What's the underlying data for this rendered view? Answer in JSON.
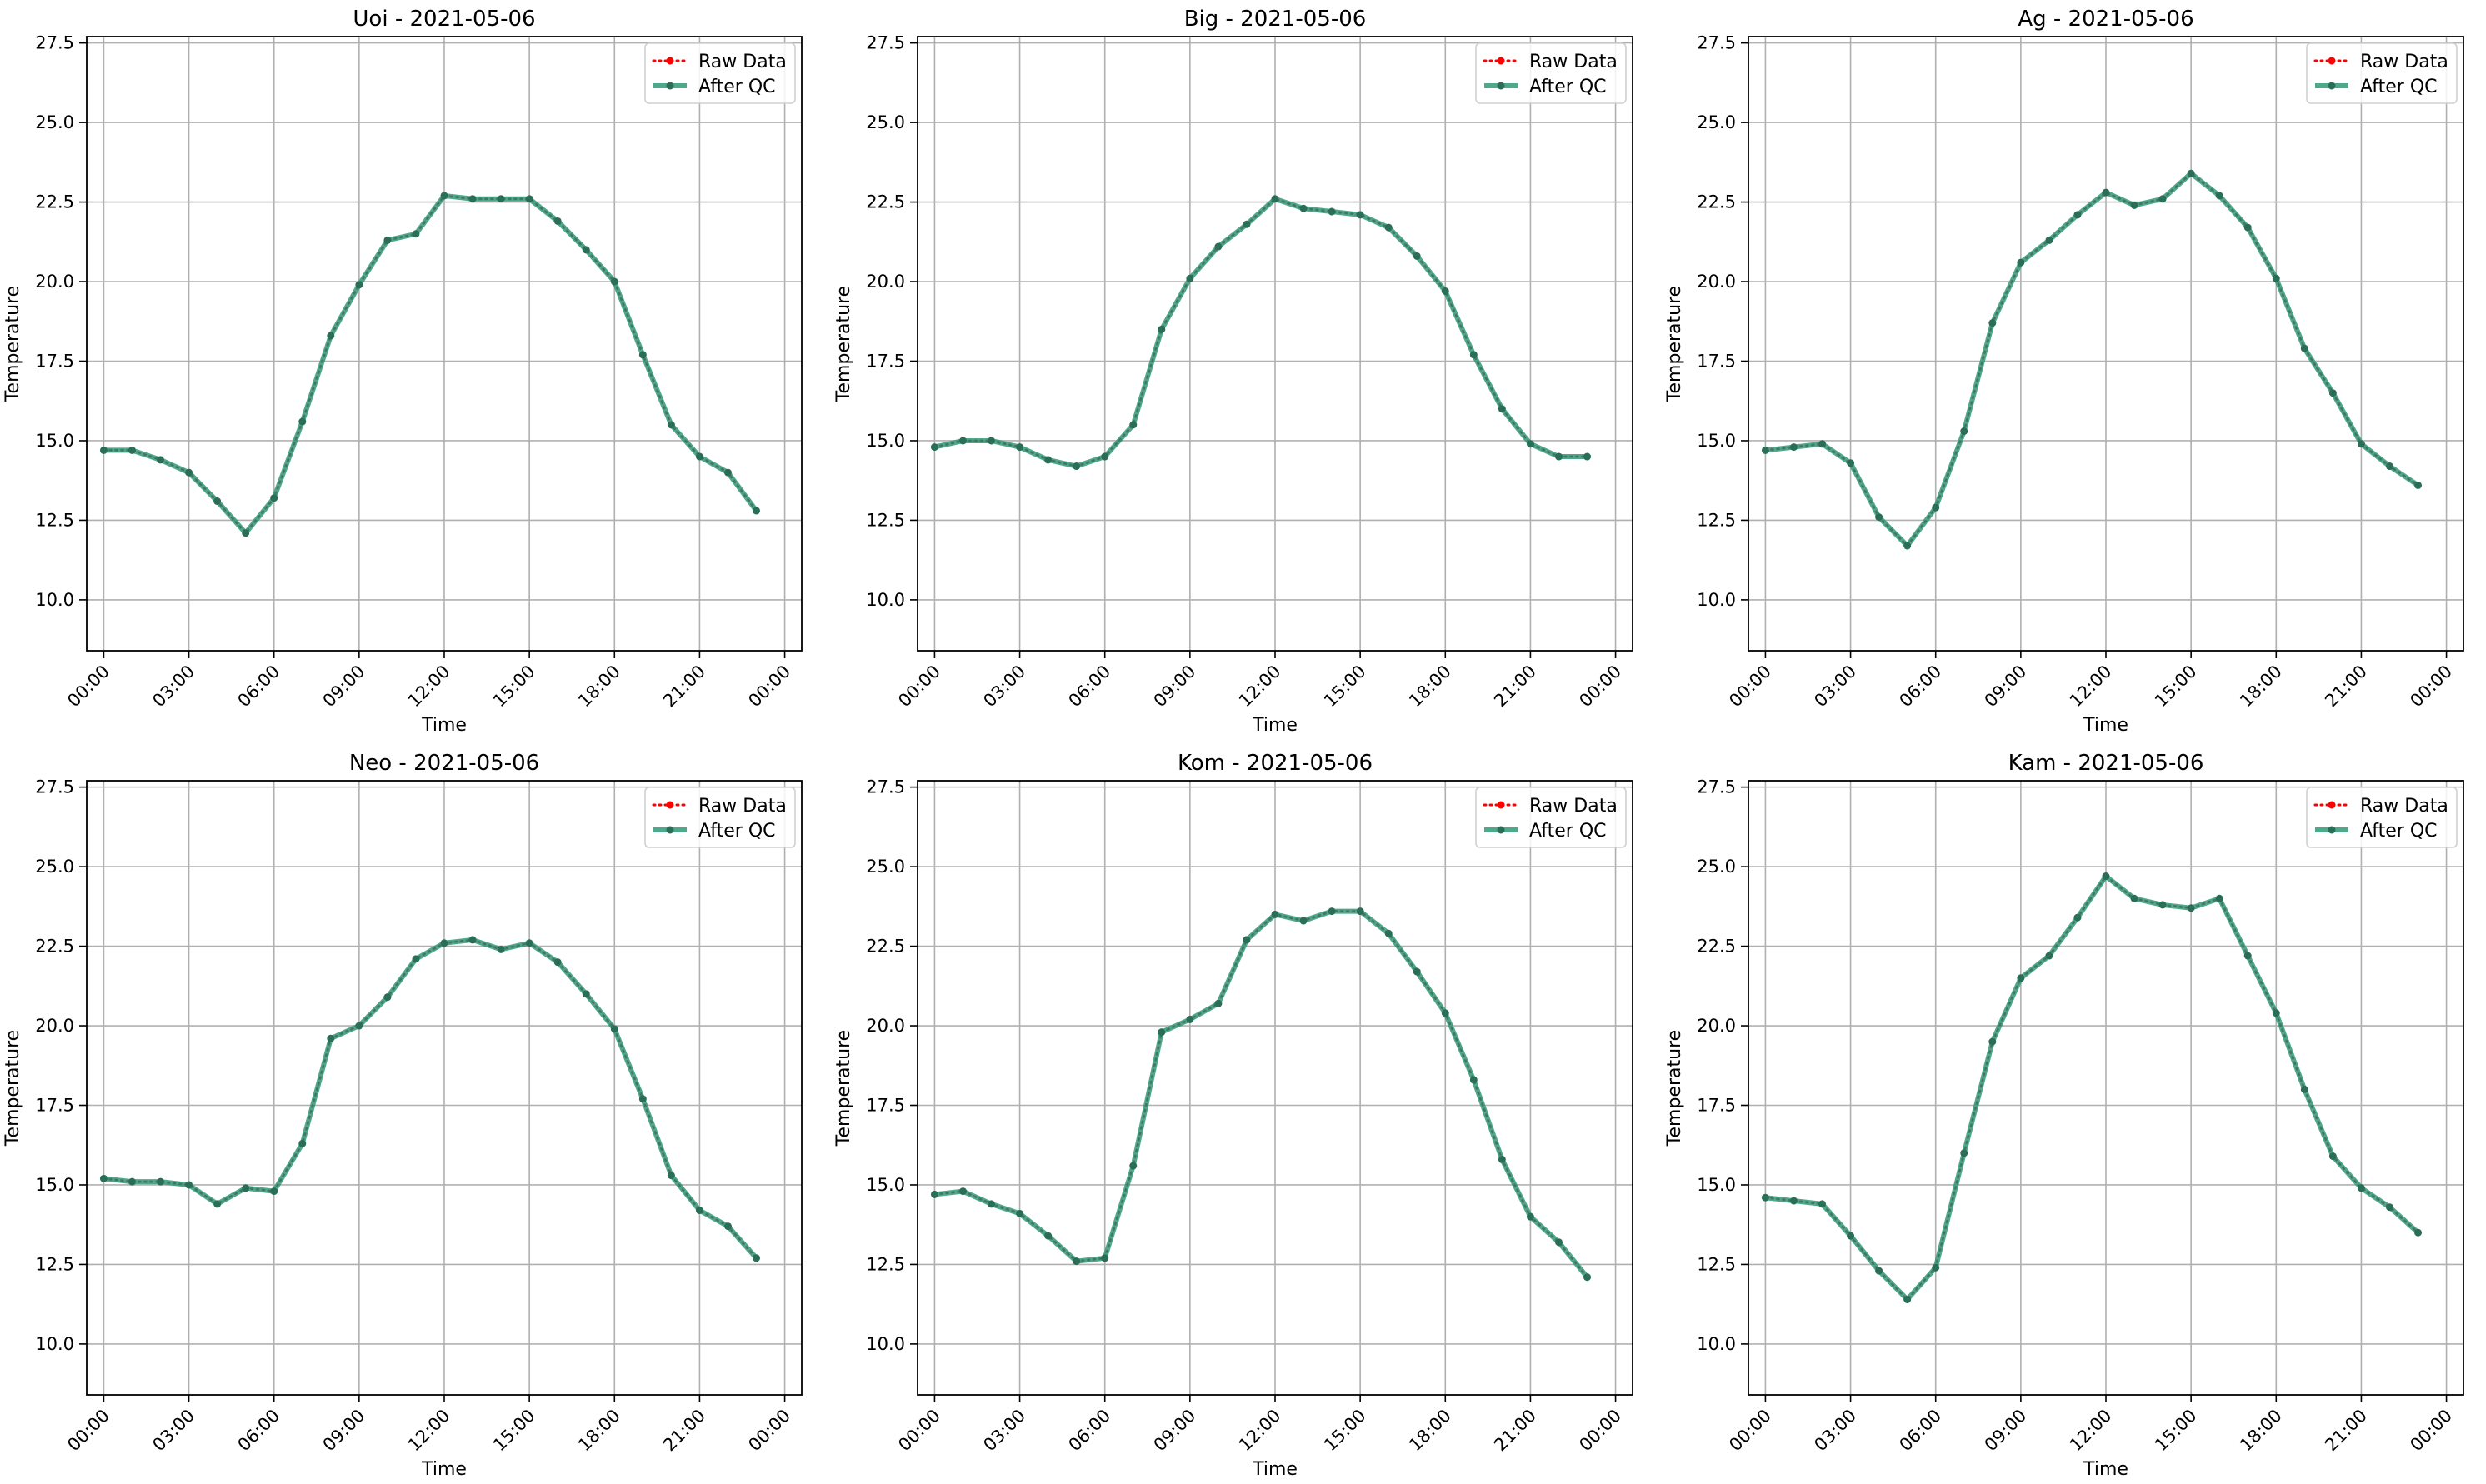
{
  "chart_data": [
    {
      "type": "line",
      "title": "Uoi - 2021-05-06",
      "xlabel": "Time",
      "ylabel": "Temperature",
      "xticks": [
        "00:00",
        "03:00",
        "06:00",
        "09:00",
        "12:00",
        "15:00",
        "18:00",
        "21:00",
        "00:00"
      ],
      "yticks": [
        "10.0",
        "12.5",
        "15.0",
        "17.5",
        "20.0",
        "22.5",
        "25.0",
        "27.5"
      ],
      "xlim_hours": [
        -0.6,
        24.6
      ],
      "ylim": [
        8.4,
        27.7
      ],
      "grid": true,
      "legend": "top-right",
      "x_hours": [
        0,
        1,
        2,
        3,
        4,
        5,
        6,
        7,
        8,
        9,
        10,
        11,
        12,
        13,
        14,
        15,
        16,
        17,
        18,
        19,
        20,
        21,
        22,
        23
      ],
      "series": [
        {
          "name": "Raw Data",
          "color": "#ff0000",
          "style": "dotted",
          "values": [
            14.7,
            14.7,
            14.4,
            14.0,
            13.1,
            12.1,
            13.2,
            15.6,
            18.3,
            19.9,
            21.3,
            21.5,
            22.7,
            22.6,
            22.6,
            22.6,
            21.9,
            21.0,
            20.0,
            17.7,
            15.5,
            14.5,
            14.0,
            12.8
          ]
        },
        {
          "name": "After QC",
          "color": "#2e9a78",
          "style": "solid",
          "values": [
            14.7,
            14.7,
            14.4,
            14.0,
            13.1,
            12.1,
            13.2,
            15.6,
            18.3,
            19.9,
            21.3,
            21.5,
            22.7,
            22.6,
            22.6,
            22.6,
            21.9,
            21.0,
            20.0,
            17.7,
            15.5,
            14.5,
            14.0,
            12.8
          ]
        }
      ]
    },
    {
      "type": "line",
      "title": "Big - 2021-05-06",
      "xlabel": "Time",
      "ylabel": "Temperature",
      "xticks": [
        "00:00",
        "03:00",
        "06:00",
        "09:00",
        "12:00",
        "15:00",
        "18:00",
        "21:00",
        "00:00"
      ],
      "yticks": [
        "10.0",
        "12.5",
        "15.0",
        "17.5",
        "20.0",
        "22.5",
        "25.0",
        "27.5"
      ],
      "xlim_hours": [
        -0.6,
        24.6
      ],
      "ylim": [
        8.4,
        27.7
      ],
      "grid": true,
      "legend": "top-right",
      "x_hours": [
        0,
        1,
        2,
        3,
        4,
        5,
        6,
        7,
        8,
        9,
        10,
        11,
        12,
        13,
        14,
        15,
        16,
        17,
        18,
        19,
        20,
        21,
        22,
        23
      ],
      "series": [
        {
          "name": "Raw Data",
          "color": "#ff0000",
          "style": "dotted",
          "values": [
            14.8,
            15.0,
            15.0,
            14.8,
            14.4,
            14.2,
            14.5,
            15.5,
            18.5,
            20.1,
            21.1,
            21.8,
            22.6,
            22.3,
            22.2,
            22.1,
            21.7,
            20.8,
            19.7,
            17.7,
            16.0,
            14.9,
            14.5,
            14.5
          ]
        },
        {
          "name": "After QC",
          "color": "#2e9a78",
          "style": "solid",
          "values": [
            14.8,
            15.0,
            15.0,
            14.8,
            14.4,
            14.2,
            14.5,
            15.5,
            18.5,
            20.1,
            21.1,
            21.8,
            22.6,
            22.3,
            22.2,
            22.1,
            21.7,
            20.8,
            19.7,
            17.7,
            16.0,
            14.9,
            14.5,
            14.5
          ]
        }
      ]
    },
    {
      "type": "line",
      "title": "Ag - 2021-05-06",
      "xlabel": "Time",
      "ylabel": "Temperature",
      "xticks": [
        "00:00",
        "03:00",
        "06:00",
        "09:00",
        "12:00",
        "15:00",
        "18:00",
        "21:00",
        "00:00"
      ],
      "yticks": [
        "10.0",
        "12.5",
        "15.0",
        "17.5",
        "20.0",
        "22.5",
        "25.0",
        "27.5"
      ],
      "xlim_hours": [
        -0.6,
        24.6
      ],
      "ylim": [
        8.4,
        27.7
      ],
      "grid": true,
      "legend": "top-right",
      "x_hours": [
        0,
        1,
        2,
        3,
        4,
        5,
        6,
        7,
        8,
        9,
        10,
        11,
        12,
        13,
        14,
        15,
        16,
        17,
        18,
        19,
        20,
        21,
        22,
        23
      ],
      "series": [
        {
          "name": "Raw Data",
          "color": "#ff0000",
          "style": "dotted",
          "values": [
            14.7,
            14.8,
            14.9,
            14.3,
            12.6,
            11.7,
            12.9,
            15.3,
            18.7,
            20.6,
            21.3,
            22.1,
            22.8,
            22.4,
            22.6,
            23.4,
            22.7,
            21.7,
            20.1,
            17.9,
            16.5,
            14.9,
            14.2,
            13.6
          ]
        },
        {
          "name": "After QC",
          "color": "#2e9a78",
          "style": "solid",
          "values": [
            14.7,
            14.8,
            14.9,
            14.3,
            12.6,
            11.7,
            12.9,
            15.3,
            18.7,
            20.6,
            21.3,
            22.1,
            22.8,
            22.4,
            22.6,
            23.4,
            22.7,
            21.7,
            20.1,
            17.9,
            16.5,
            14.9,
            14.2,
            13.6
          ]
        }
      ]
    },
    {
      "type": "line",
      "title": "Neo - 2021-05-06",
      "xlabel": "Time",
      "ylabel": "Temperature",
      "xticks": [
        "00:00",
        "03:00",
        "06:00",
        "09:00",
        "12:00",
        "15:00",
        "18:00",
        "21:00",
        "00:00"
      ],
      "yticks": [
        "10.0",
        "12.5",
        "15.0",
        "17.5",
        "20.0",
        "22.5",
        "25.0",
        "27.5"
      ],
      "xlim_hours": [
        -0.6,
        24.6
      ],
      "ylim": [
        8.4,
        27.7
      ],
      "grid": true,
      "legend": "top-right",
      "x_hours": [
        0,
        1,
        2,
        3,
        4,
        5,
        6,
        7,
        8,
        9,
        10,
        11,
        12,
        13,
        14,
        15,
        16,
        17,
        18,
        19,
        20,
        21,
        22,
        23
      ],
      "series": [
        {
          "name": "Raw Data",
          "color": "#ff0000",
          "style": "dotted",
          "values": [
            15.2,
            15.1,
            15.1,
            15.0,
            14.4,
            14.9,
            14.8,
            16.3,
            19.6,
            20.0,
            20.9,
            22.1,
            22.6,
            22.7,
            22.4,
            22.6,
            22.0,
            21.0,
            19.9,
            17.7,
            15.3,
            14.2,
            13.7,
            12.7
          ]
        },
        {
          "name": "After QC",
          "color": "#2e9a78",
          "style": "solid",
          "values": [
            15.2,
            15.1,
            15.1,
            15.0,
            14.4,
            14.9,
            14.8,
            16.3,
            19.6,
            20.0,
            20.9,
            22.1,
            22.6,
            22.7,
            22.4,
            22.6,
            22.0,
            21.0,
            19.9,
            17.7,
            15.3,
            14.2,
            13.7,
            12.7
          ]
        }
      ]
    },
    {
      "type": "line",
      "title": "Kom - 2021-05-06",
      "xlabel": "Time",
      "ylabel": "Temperature",
      "xticks": [
        "00:00",
        "03:00",
        "06:00",
        "09:00",
        "12:00",
        "15:00",
        "18:00",
        "21:00",
        "00:00"
      ],
      "yticks": [
        "10.0",
        "12.5",
        "15.0",
        "17.5",
        "20.0",
        "22.5",
        "25.0",
        "27.5"
      ],
      "xlim_hours": [
        -0.6,
        24.6
      ],
      "ylim": [
        8.4,
        27.7
      ],
      "grid": true,
      "legend": "top-right",
      "x_hours": [
        0,
        1,
        2,
        3,
        4,
        5,
        6,
        7,
        8,
        9,
        10,
        11,
        12,
        13,
        14,
        15,
        16,
        17,
        18,
        19,
        20,
        21,
        22,
        23
      ],
      "series": [
        {
          "name": "Raw Data",
          "color": "#ff0000",
          "style": "dotted",
          "values": [
            14.7,
            14.8,
            14.4,
            14.1,
            13.4,
            12.6,
            12.7,
            15.6,
            19.8,
            20.2,
            20.7,
            22.7,
            23.5,
            23.3,
            23.6,
            23.6,
            22.9,
            21.7,
            20.4,
            18.3,
            15.8,
            14.0,
            13.2,
            12.1
          ]
        },
        {
          "name": "After QC",
          "color": "#2e9a78",
          "style": "solid",
          "values": [
            14.7,
            14.8,
            14.4,
            14.1,
            13.4,
            12.6,
            12.7,
            15.6,
            19.8,
            20.2,
            20.7,
            22.7,
            23.5,
            23.3,
            23.6,
            23.6,
            22.9,
            21.7,
            20.4,
            18.3,
            15.8,
            14.0,
            13.2,
            12.1
          ]
        }
      ]
    },
    {
      "type": "line",
      "title": "Kam - 2021-05-06",
      "xlabel": "Time",
      "ylabel": "Temperature",
      "xticks": [
        "00:00",
        "03:00",
        "06:00",
        "09:00",
        "12:00",
        "15:00",
        "18:00",
        "21:00",
        "00:00"
      ],
      "yticks": [
        "10.0",
        "12.5",
        "15.0",
        "17.5",
        "20.0",
        "22.5",
        "25.0",
        "27.5"
      ],
      "xlim_hours": [
        -0.6,
        24.6
      ],
      "ylim": [
        8.4,
        27.7
      ],
      "grid": true,
      "legend": "top-right",
      "x_hours": [
        0,
        1,
        2,
        3,
        4,
        5,
        6,
        7,
        8,
        9,
        10,
        11,
        12,
        13,
        14,
        15,
        16,
        17,
        18,
        19,
        20,
        21,
        22,
        23
      ],
      "series": [
        {
          "name": "Raw Data",
          "color": "#ff0000",
          "style": "dotted",
          "values": [
            14.6,
            14.5,
            14.4,
            13.4,
            12.3,
            11.4,
            12.4,
            16.0,
            19.5,
            21.5,
            22.2,
            23.4,
            24.7,
            24.0,
            23.8,
            23.7,
            24.0,
            22.2,
            20.4,
            18.0,
            15.9,
            14.9,
            14.3,
            13.5
          ]
        },
        {
          "name": "After QC",
          "color": "#2e9a78",
          "style": "solid",
          "values": [
            14.6,
            14.5,
            14.4,
            13.4,
            12.3,
            11.4,
            12.4,
            16.0,
            19.5,
            21.5,
            22.2,
            23.4,
            24.7,
            24.0,
            23.8,
            23.7,
            24.0,
            22.2,
            20.4,
            18.0,
            15.9,
            14.9,
            14.3,
            13.5
          ]
        }
      ]
    }
  ]
}
